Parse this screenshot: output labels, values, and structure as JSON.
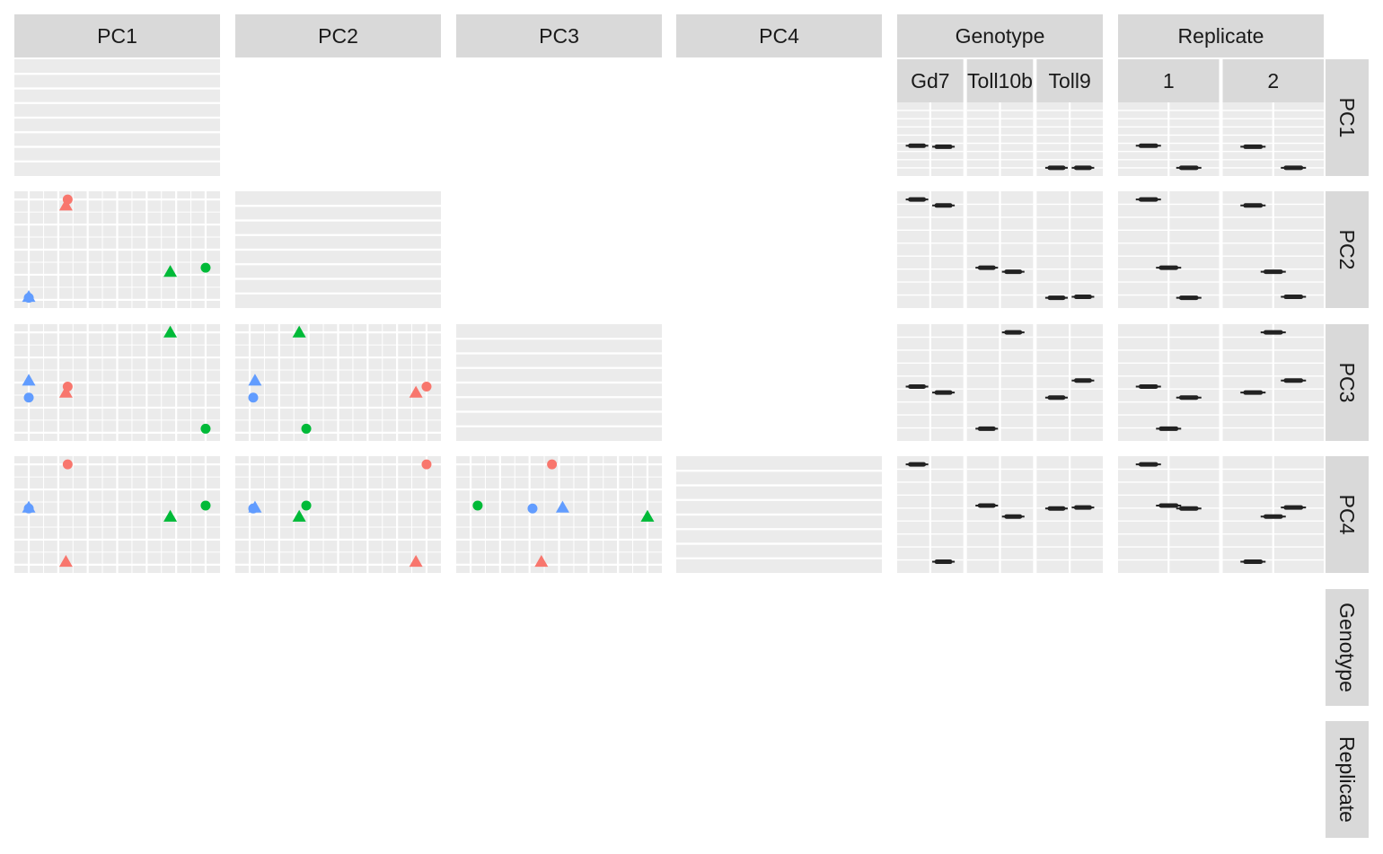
{
  "chart_data": {
    "type": "scatter",
    "title": "",
    "description_kind": "pairs-plot",
    "variables": [
      "PC1",
      "PC2",
      "PC3",
      "PC4",
      "Genotype",
      "Replicate"
    ],
    "genotype_levels": [
      "Gd7",
      "Toll10b",
      "Toll9"
    ],
    "genotype_labels": [
      "Gd7",
      "Toll10b",
      "Toll9"
    ],
    "replicate_levels": [
      "1",
      "2"
    ],
    "colors": {
      "Gd7": "#F8766D",
      "Toll10b": "#00BA38",
      "Toll9": "#619CFF",
      "panel_background": "#EBEBEB",
      "strip_background": "#D9D9D9",
      "grid": "#FFFFFF",
      "boxplot": "#222222"
    },
    "shapes": {
      "1": "circle",
      "2": "triangle"
    },
    "samples": [
      {
        "genotype": "Gd7",
        "replicate": "1",
        "PC1": 0.22,
        "PC2": 1.0,
        "PC3": 0.46,
        "PC4": 1.0
      },
      {
        "genotype": "Gd7",
        "replicate": "2",
        "PC1": 0.21,
        "PC2": 0.94,
        "PC3": 0.4,
        "PC4": 0.03
      },
      {
        "genotype": "Toll10b",
        "replicate": "1",
        "PC1": 1.0,
        "PC2": 0.32,
        "PC3": 0.04,
        "PC4": 0.59
      },
      {
        "genotype": "Toll10b",
        "replicate": "2",
        "PC1": 0.8,
        "PC2": 0.28,
        "PC3": 1.0,
        "PC4": 0.48
      },
      {
        "genotype": "Toll9",
        "replicate": "1",
        "PC1": 0.0,
        "PC2": 0.02,
        "PC3": 0.35,
        "PC4": 0.56
      },
      {
        "genotype": "Toll9",
        "replicate": "2",
        "PC1": 0.0,
        "PC2": 0.03,
        "PC3": 0.52,
        "PC4": 0.57
      }
    ],
    "legend": "none",
    "grid": true
  }
}
